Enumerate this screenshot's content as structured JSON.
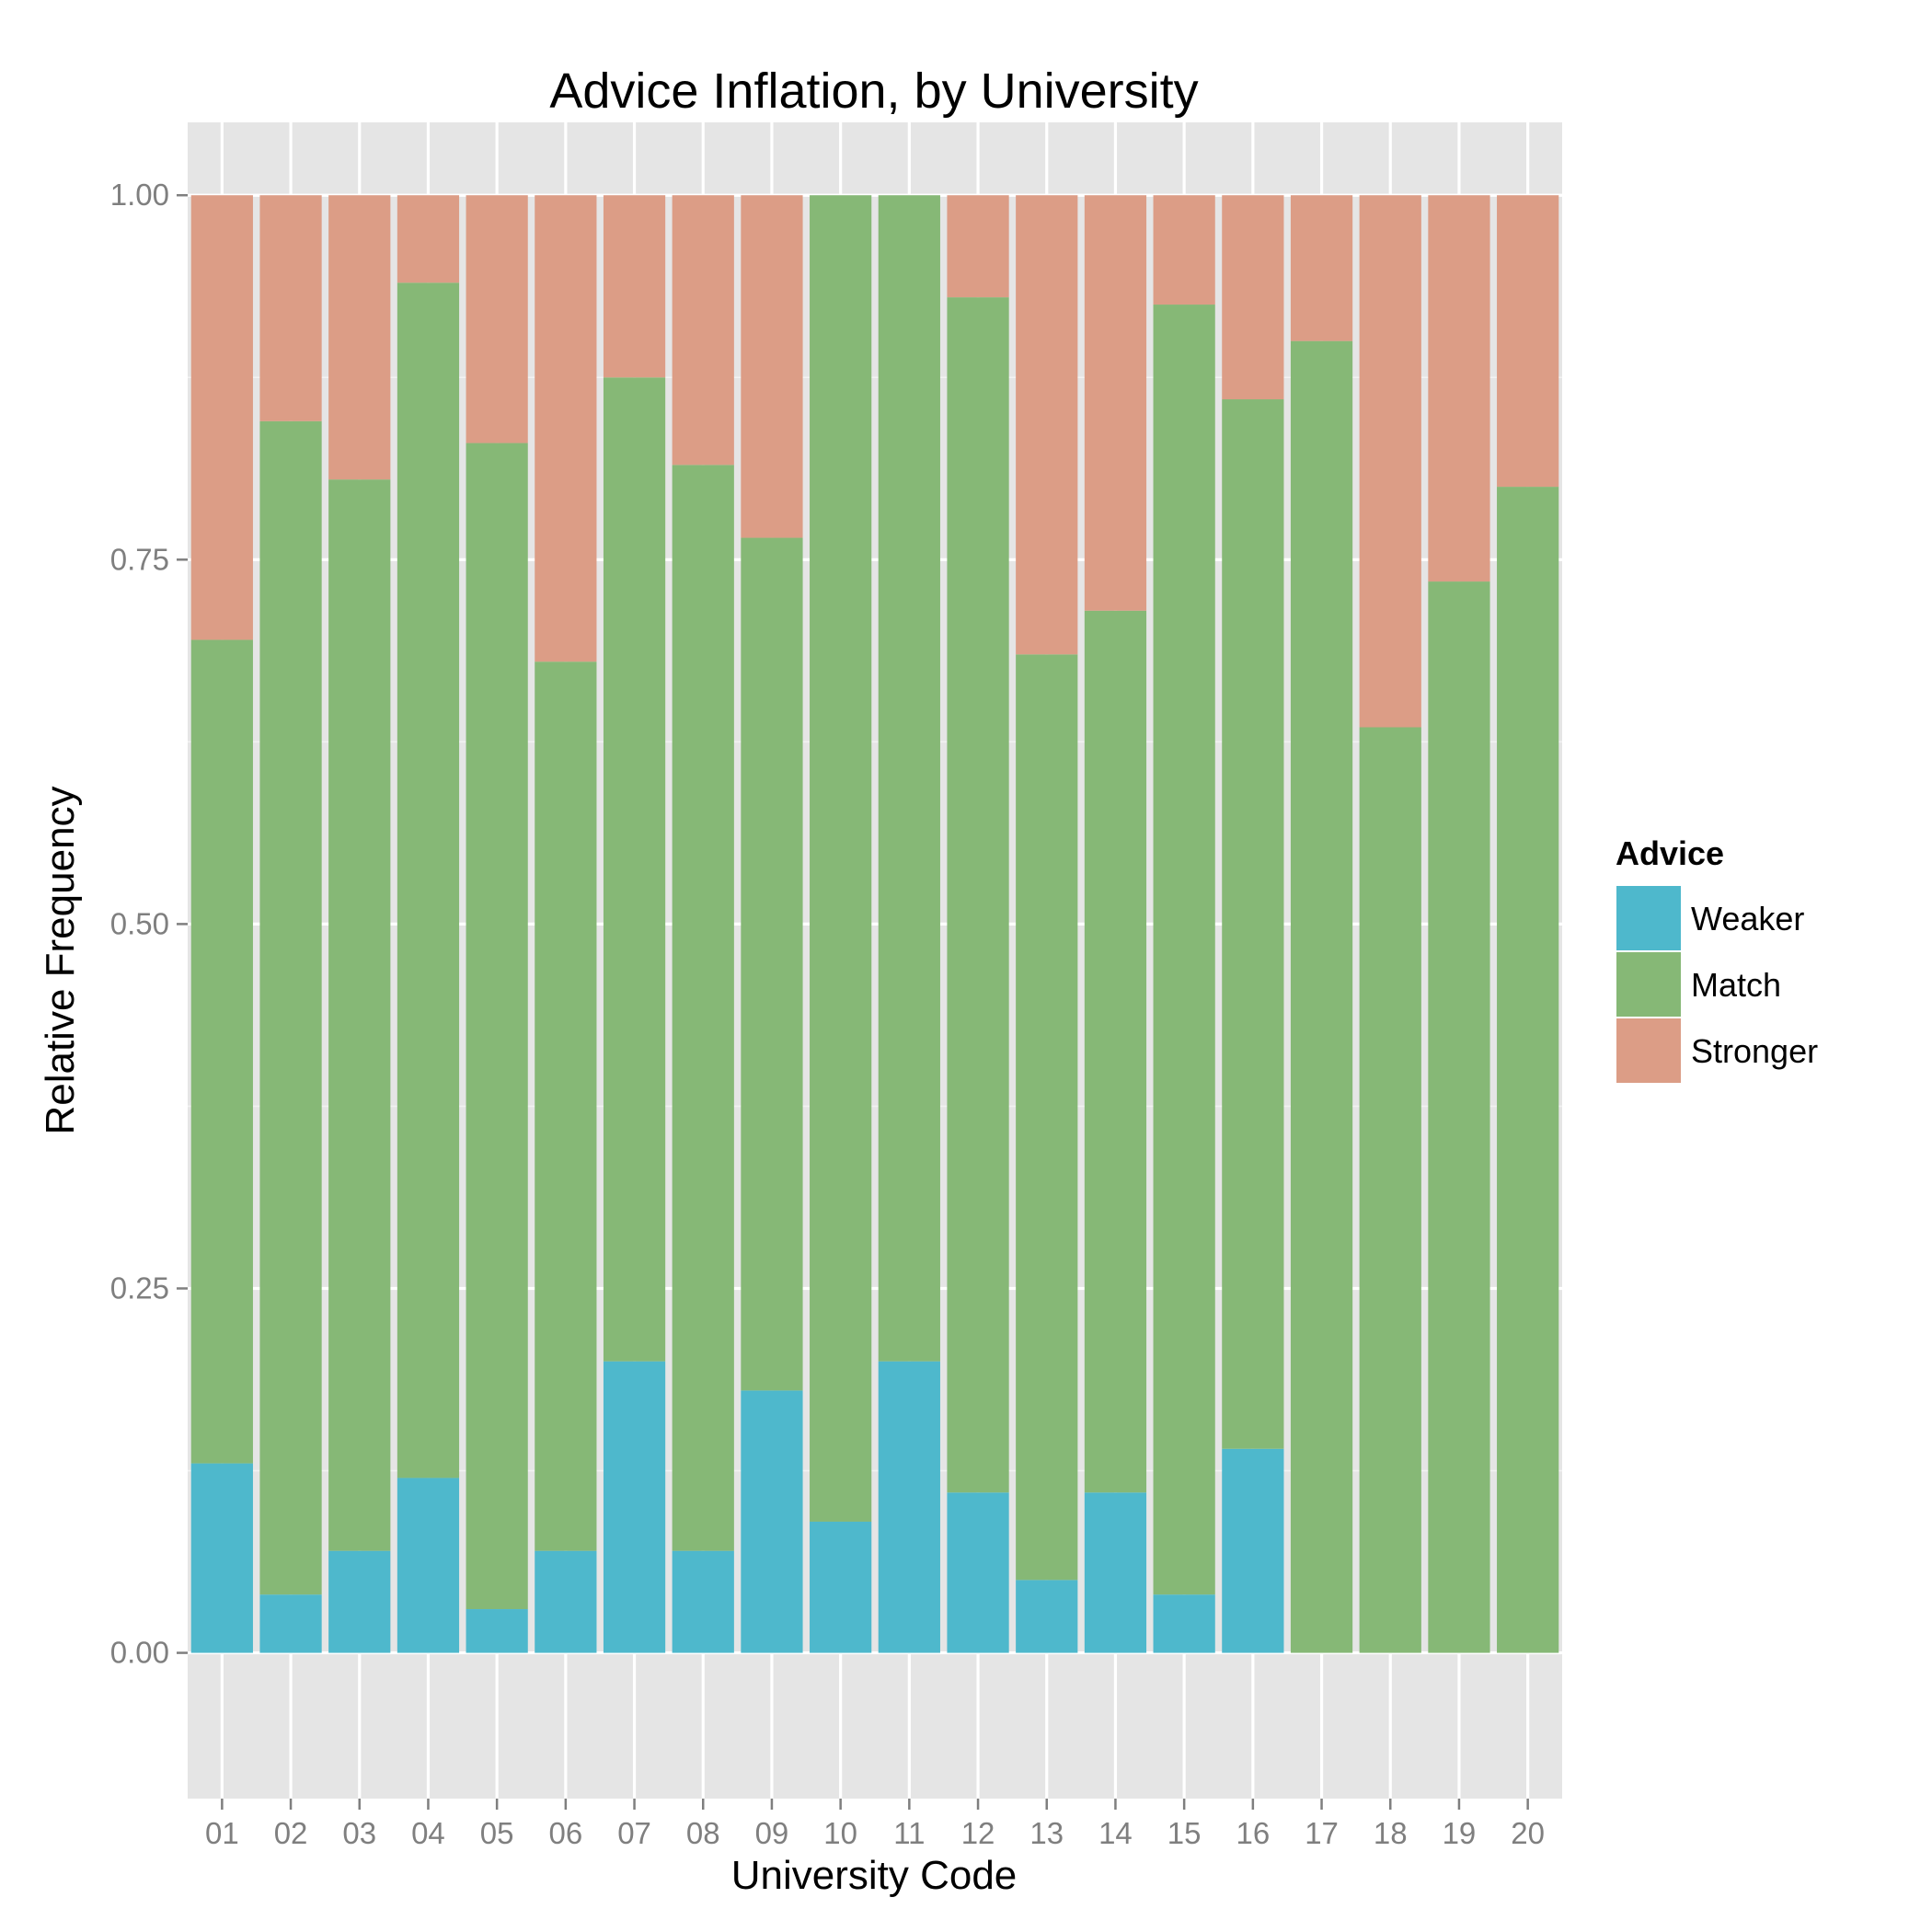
{
  "chart_data": {
    "type": "bar",
    "stacked": true,
    "title": "Advice Inflation, by University",
    "xlabel": "University Code",
    "ylabel": "Relative Frequency",
    "ylim": [
      -0.1,
      1.05
    ],
    "yticks": [
      "0.00",
      "0.25",
      "0.50",
      "0.75",
      "1.00"
    ],
    "ytick_values": [
      0,
      0.25,
      0.5,
      0.75,
      1.0
    ],
    "categories": [
      "01",
      "02",
      "03",
      "04",
      "05",
      "06",
      "07",
      "08",
      "09",
      "10",
      "11",
      "12",
      "13",
      "14",
      "15",
      "16",
      "17",
      "18",
      "19",
      "20"
    ],
    "series": [
      {
        "name": "Weaker",
        "color": "#4eb8cc",
        "values": [
          0.13,
          0.04,
          0.07,
          0.12,
          0.03,
          0.07,
          0.2,
          0.07,
          0.18,
          0.09,
          0.2,
          0.11,
          0.05,
          0.11,
          0.04,
          0.14,
          0.0,
          0.0,
          0.0,
          0.0
        ]
      },
      {
        "name": "Match",
        "color": "#86b876",
        "values": [
          0.565,
          0.805,
          0.735,
          0.82,
          0.8,
          0.61,
          0.675,
          0.745,
          0.585,
          0.91,
          0.8,
          0.82,
          0.635,
          0.605,
          0.885,
          0.72,
          0.9,
          0.635,
          0.735,
          0.8
        ]
      },
      {
        "name": "Stronger",
        "color": "#dc9d86",
        "values": [
          0.305,
          0.155,
          0.195,
          0.06,
          0.17,
          0.32,
          0.125,
          0.185,
          0.235,
          0.0,
          0.0,
          0.07,
          0.315,
          0.285,
          0.075,
          0.14,
          0.1,
          0.365,
          0.265,
          0.2
        ]
      }
    ],
    "legend": {
      "title": "Advice",
      "position": "right"
    },
    "grid": true,
    "panel_background": "#e5e5e5",
    "grid_color": "#ffffff"
  }
}
